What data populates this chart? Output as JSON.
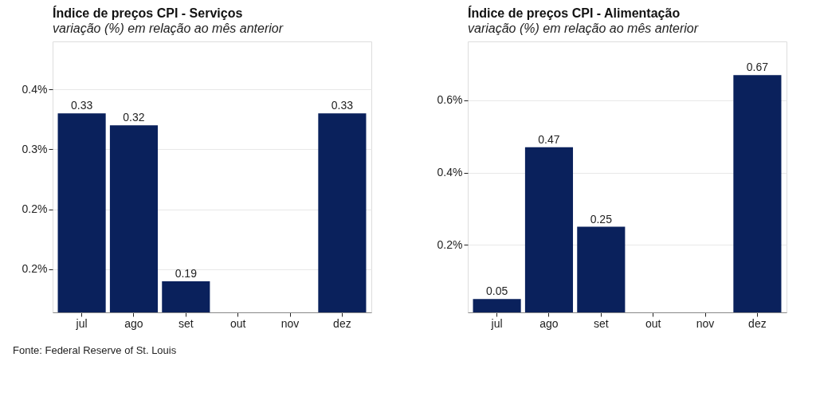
{
  "chart_data": [
    {
      "type": "bar",
      "title": "Índice de preços CPI - Serviços",
      "subtitle": "variação (%) em relação ao mês anterior",
      "categories": [
        "jul",
        "ago",
        "set",
        "out",
        "nov",
        "dez"
      ],
      "values": [
        0.33,
        0.32,
        0.19,
        null,
        null,
        0.33
      ],
      "color": "#0a215c",
      "ylim": [
        0.164,
        0.39
      ],
      "yticks": [
        {
          "value": 0.2,
          "label": "0.2%"
        },
        {
          "value": 0.25,
          "label": "0.2%"
        },
        {
          "value": 0.3,
          "label": "0.3%"
        },
        {
          "value": 0.35,
          "label": "0.4%"
        }
      ],
      "grid": "y",
      "data_labels": true,
      "annotations": [
        "Fonte: Federal Reserve of St. Louis"
      ]
    },
    {
      "type": "bar",
      "title": "Índice de preços CPI - Alimentação",
      "subtitle": "variação (%) em relação ao mês anterior",
      "categories": [
        "jul",
        "ago",
        "set",
        "out",
        "nov",
        "dez"
      ],
      "values": [
        0.05,
        0.47,
        0.25,
        null,
        null,
        0.67
      ],
      "color": "#0a215c",
      "ylim": [
        0.013,
        0.763
      ],
      "yticks": [
        {
          "value": 0.2,
          "label": "0.2%"
        },
        {
          "value": 0.4,
          "label": "0.4%"
        },
        {
          "value": 0.6,
          "label": "0.6%"
        }
      ],
      "grid": "y",
      "data_labels": true
    }
  ]
}
